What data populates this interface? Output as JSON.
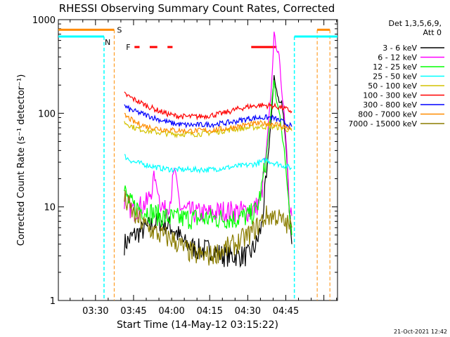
{
  "chart_data": {
    "type": "line",
    "title": "RHESSI Observing Summary Count Rates, Corrected",
    "xlabel": "Start Time (14-May-12 03:15:22)",
    "ylabel": "Corrected Count Rate (s⁻¹ detector⁻¹)",
    "x_ticks": [
      "03:30",
      "03:45",
      "04:00",
      "04:15",
      "04:30",
      "04:45"
    ],
    "y_ticks": [
      "1",
      "10",
      "100",
      "1000"
    ],
    "ylim": [
      1,
      1000
    ],
    "y_scale": "log",
    "xlim_minutes": [
      0,
      110
    ],
    "legend_header": [
      "Det 1,3,5,6,9,",
      "Att 0"
    ],
    "legend_position": "right",
    "flag_labels": {
      "saa": "S",
      "night": "N",
      "flare": "F"
    },
    "series": [
      {
        "name": "3 - 6 keV",
        "color": "#000000",
        "points": [
          [
            26,
            4
          ],
          [
            30,
            5
          ],
          [
            35,
            6
          ],
          [
            40,
            7
          ],
          [
            45,
            6
          ],
          [
            50,
            4
          ],
          [
            55,
            3.5
          ],
          [
            60,
            3.5
          ],
          [
            65,
            3
          ],
          [
            70,
            3
          ],
          [
            75,
            3
          ],
          [
            78,
            4
          ],
          [
            80,
            6
          ],
          [
            82,
            20
          ],
          [
            84,
            100
          ],
          [
            85,
            240
          ],
          [
            86,
            180
          ],
          [
            87,
            130
          ],
          [
            88,
            130
          ],
          [
            89,
            80
          ],
          [
            90,
            35
          ],
          [
            91,
            10
          ],
          [
            92,
            4
          ]
        ]
      },
      {
        "name": "6 - 12 keV",
        "color": "#ff00ff",
        "points": [
          [
            26,
            12
          ],
          [
            28,
            10
          ],
          [
            30,
            9
          ],
          [
            32,
            10
          ],
          [
            35,
            11
          ],
          [
            38,
            20
          ],
          [
            40,
            12
          ],
          [
            42,
            9
          ],
          [
            44,
            12
          ],
          [
            46,
            25
          ],
          [
            48,
            10
          ],
          [
            50,
            9
          ],
          [
            55,
            8.5
          ],
          [
            60,
            8.5
          ],
          [
            65,
            9
          ],
          [
            70,
            9
          ],
          [
            75,
            9
          ],
          [
            78,
            10
          ],
          [
            80,
            13
          ],
          [
            82,
            40
          ],
          [
            84,
            200
          ],
          [
            85,
            700
          ],
          [
            86,
            500
          ],
          [
            87,
            400
          ],
          [
            88,
            180
          ],
          [
            89,
            100
          ],
          [
            90,
            40
          ],
          [
            91,
            12
          ],
          [
            92,
            8
          ]
        ]
      },
      {
        "name": "12 - 25 keV",
        "color": "#00ff00",
        "points": [
          [
            26,
            15
          ],
          [
            28,
            11
          ],
          [
            30,
            10
          ],
          [
            35,
            9
          ],
          [
            40,
            8
          ],
          [
            45,
            7.5
          ],
          [
            50,
            7.5
          ],
          [
            55,
            7.5
          ],
          [
            60,
            7.5
          ],
          [
            65,
            7.5
          ],
          [
            70,
            7.5
          ],
          [
            75,
            8
          ],
          [
            78,
            9
          ],
          [
            80,
            15
          ],
          [
            82,
            35
          ],
          [
            84,
            120
          ],
          [
            85,
            220
          ],
          [
            86,
            130
          ],
          [
            87,
            110
          ],
          [
            88,
            60
          ],
          [
            89,
            40
          ],
          [
            90,
            20
          ],
          [
            91,
            10
          ],
          [
            92,
            5
          ]
        ]
      },
      {
        "name": "25 - 50 keV",
        "color": "#00ffff",
        "points": [
          [
            26,
            35
          ],
          [
            28,
            32
          ],
          [
            30,
            30
          ],
          [
            35,
            28
          ],
          [
            40,
            26
          ],
          [
            45,
            25
          ],
          [
            50,
            25
          ],
          [
            55,
            25
          ],
          [
            60,
            25
          ],
          [
            65,
            26
          ],
          [
            70,
            27
          ],
          [
            75,
            28
          ],
          [
            78,
            29
          ],
          [
            80,
            30
          ],
          [
            82,
            32
          ],
          [
            84,
            30
          ],
          [
            86,
            29
          ],
          [
            88,
            28
          ],
          [
            90,
            27
          ],
          [
            92,
            26
          ]
        ]
      },
      {
        "name": "50 - 100 keV",
        "color": "#d4c200",
        "points": [
          [
            26,
            80
          ],
          [
            28,
            75
          ],
          [
            30,
            70
          ],
          [
            35,
            65
          ],
          [
            40,
            62
          ],
          [
            45,
            60
          ],
          [
            50,
            60
          ],
          [
            55,
            60
          ],
          [
            60,
            62
          ],
          [
            65,
            65
          ],
          [
            70,
            68
          ],
          [
            75,
            70
          ],
          [
            80,
            72
          ],
          [
            84,
            72
          ],
          [
            88,
            70
          ],
          [
            92,
            65
          ]
        ]
      },
      {
        "name": "100 - 300 keV",
        "color": "#ff0000",
        "points": [
          [
            26,
            160
          ],
          [
            28,
            150
          ],
          [
            30,
            140
          ],
          [
            35,
            120
          ],
          [
            40,
            105
          ],
          [
            45,
            95
          ],
          [
            50,
            92
          ],
          [
            55,
            92
          ],
          [
            60,
            95
          ],
          [
            65,
            100
          ],
          [
            70,
            110
          ],
          [
            75,
            118
          ],
          [
            80,
            122
          ],
          [
            84,
            120
          ],
          [
            88,
            115
          ],
          [
            92,
            105
          ]
        ]
      },
      {
        "name": "300 - 800 keV",
        "color": "#0000ff",
        "points": [
          [
            26,
            120
          ],
          [
            28,
            110
          ],
          [
            30,
            105
          ],
          [
            35,
            95
          ],
          [
            40,
            85
          ],
          [
            45,
            78
          ],
          [
            50,
            75
          ],
          [
            55,
            75
          ],
          [
            60,
            76
          ],
          [
            65,
            78
          ],
          [
            70,
            82
          ],
          [
            75,
            88
          ],
          [
            80,
            90
          ],
          [
            84,
            90
          ],
          [
            88,
            82
          ],
          [
            92,
            72
          ]
        ]
      },
      {
        "name": "800 - 7000 keV",
        "color": "#ff8c00",
        "points": [
          [
            26,
            95
          ],
          [
            28,
            88
          ],
          [
            30,
            80
          ],
          [
            35,
            72
          ],
          [
            40,
            68
          ],
          [
            45,
            66
          ],
          [
            50,
            65
          ],
          [
            55,
            65
          ],
          [
            60,
            66
          ],
          [
            65,
            68
          ],
          [
            70,
            72
          ],
          [
            75,
            76
          ],
          [
            80,
            78
          ],
          [
            84,
            78
          ],
          [
            88,
            74
          ],
          [
            92,
            68
          ]
        ]
      },
      {
        "name": "7000 - 15000 keV",
        "color": "#8b7d00",
        "points": [
          [
            26,
            12
          ],
          [
            28,
            10
          ],
          [
            30,
            8
          ],
          [
            35,
            6
          ],
          [
            40,
            5
          ],
          [
            45,
            4.5
          ],
          [
            50,
            3.5
          ],
          [
            55,
            3
          ],
          [
            60,
            3
          ],
          [
            65,
            3.5
          ],
          [
            70,
            4
          ],
          [
            75,
            5
          ],
          [
            78,
            6
          ],
          [
            80,
            7
          ],
          [
            82,
            8
          ],
          [
            84,
            8
          ],
          [
            86,
            8
          ],
          [
            88,
            7
          ],
          [
            90,
            6.5
          ],
          [
            92,
            6
          ]
        ]
      }
    ],
    "saa_intervals_minutes": [
      [
        0,
        22
      ],
      [
        102,
        107
      ]
    ],
    "night_intervals_minutes": [
      [
        0,
        18
      ],
      [
        93,
        110
      ]
    ],
    "flare_markers_minutes": [
      [
        30,
        32
      ],
      [
        36,
        39
      ],
      [
        43,
        45
      ],
      [
        76,
        86
      ]
    ]
  },
  "footer": {
    "timestamp": "21-Oct-2021 12:42"
  }
}
